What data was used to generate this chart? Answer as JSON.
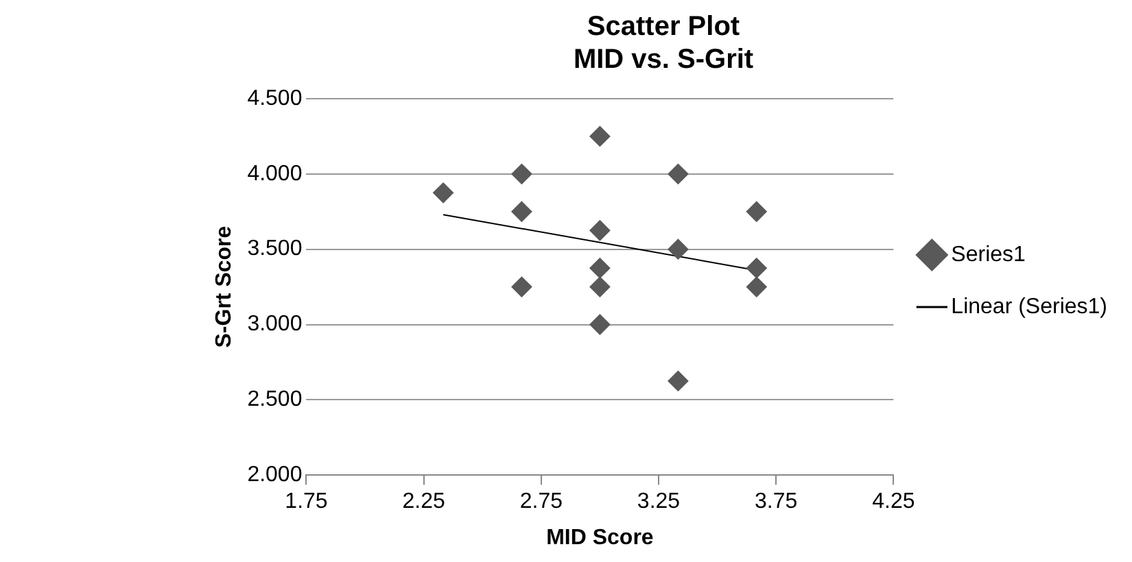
{
  "chart_data": {
    "type": "scatter",
    "title": "Scatter Plot",
    "subtitle": "MID vs. S-Grit",
    "xlabel": "MID Score",
    "ylabel": "S-Grt Score",
    "series": [
      {
        "name": "Series1",
        "type": "scatter",
        "color": "#595959",
        "marker": "diamond",
        "x": [
          2.333,
          2.667,
          2.667,
          2.667,
          3,
          3,
          3,
          3,
          3,
          3.333,
          3.333,
          3.333,
          3.667,
          3.667,
          3.667
        ],
        "values": [
          3.875,
          4,
          3.75,
          3.25,
          4.25,
          3.625,
          3.375,
          3.25,
          3,
          4,
          3.5,
          2.625,
          3.75,
          3.375,
          3.25
        ]
      },
      {
        "name": "Linear (Series1)",
        "type": "line",
        "color": "#000000",
        "marker": "none",
        "line_style": "solid",
        "x": [
          2.333,
          3.667
        ],
        "values": [
          3.73,
          3.36
        ]
      }
    ],
    "xlim": [
      1.75,
      4.25
    ],
    "xticks": [
      1.75,
      2.25,
      2.75,
      3.25,
      3.75,
      4.25
    ],
    "ylim": [
      2,
      4.5
    ],
    "yticks": [
      {
        "value": 2,
        "label": "2.000"
      },
      {
        "value": 2.5,
        "label": "2.500"
      },
      {
        "value": 3,
        "label": "3.000"
      },
      {
        "value": 3.5,
        "label": "3.500"
      },
      {
        "value": 4,
        "label": "4.000"
      },
      {
        "value": 4.5,
        "label": "4.500"
      }
    ],
    "grid": "y",
    "legend": "right"
  }
}
